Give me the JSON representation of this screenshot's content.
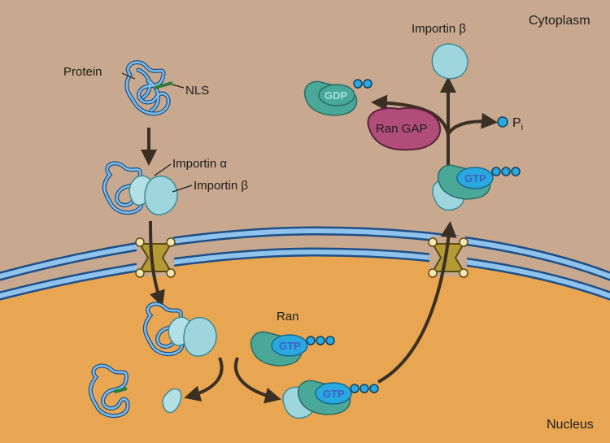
{
  "regions": {
    "cytoplasm": "Cytoplasm",
    "nucleus": "Nucleus"
  },
  "labels": {
    "protein": "Protein",
    "nls": "NLS",
    "importin_alpha": "Importin α",
    "importin_beta": "Importin β",
    "importin_beta_top": "Importin β",
    "ran": "Ran",
    "ran_gap": "Ran GAP",
    "gdp": "GDP",
    "gtp": "GTP",
    "pi": "Pi"
  },
  "colors": {
    "cytoplasm": "#c8a98f",
    "nucleus": "#e9a652",
    "membrane": "#3f86c9",
    "importin": "#9fd6dd",
    "ran": "#49a898",
    "nucleotide": "#2aa8e0",
    "ran_gap": "#b04d78",
    "pore": "#b39a35",
    "arrow": "#3a2f22"
  }
}
